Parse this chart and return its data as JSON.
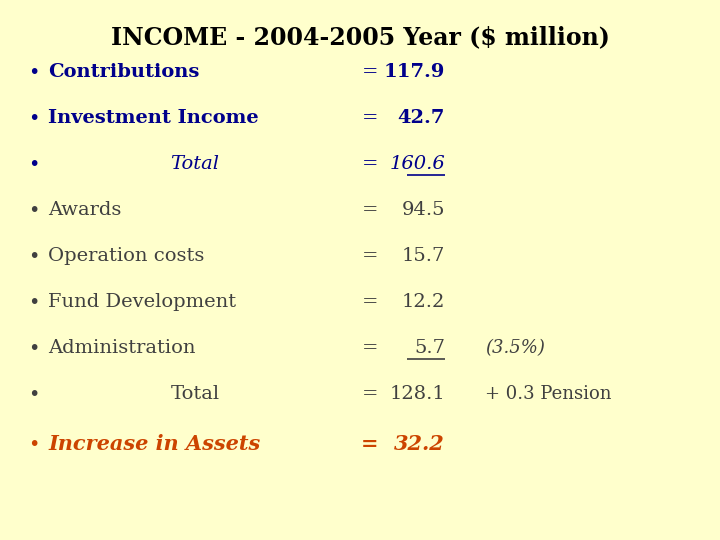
{
  "title": "INCOME - 2004-2005 Year ($ million)",
  "background_color": "#FFFFCC",
  "title_color": "#000000",
  "title_fontsize": 17,
  "title_fontweight": "bold",
  "title_fontfamily": "serif",
  "bullet_color_blue": "#00008B",
  "bullet_color_normal": "#404040",
  "bullet_color_orange": "#CC4400",
  "rows": [
    {
      "label": "Contributions",
      "indent": false,
      "bold": true,
      "italic": false,
      "color": "blue",
      "value": "117.9",
      "extra": "",
      "value_underline": false
    },
    {
      "label": "Investment Income",
      "indent": false,
      "bold": true,
      "italic": false,
      "color": "blue",
      "value": "42.7",
      "extra": "",
      "value_underline": false
    },
    {
      "label": "Total",
      "indent": true,
      "bold": false,
      "italic": true,
      "color": "blue",
      "value": "160.6",
      "extra": "",
      "value_underline": true
    },
    {
      "label": "Awards",
      "indent": false,
      "bold": false,
      "italic": false,
      "color": "normal",
      "value": "94.5",
      "extra": "",
      "value_underline": false
    },
    {
      "label": "Operation costs",
      "indent": false,
      "bold": false,
      "italic": false,
      "color": "normal",
      "value": "15.7",
      "extra": "",
      "value_underline": false
    },
    {
      "label": "Fund Development",
      "indent": false,
      "bold": false,
      "italic": false,
      "color": "normal",
      "value": "12.2",
      "extra": "",
      "value_underline": false
    },
    {
      "label": "Administration",
      "indent": false,
      "bold": false,
      "italic": false,
      "color": "normal",
      "value": "5.7",
      "extra": "(3.5%)",
      "value_underline": true
    },
    {
      "label": "Total",
      "indent": true,
      "bold": false,
      "italic": false,
      "color": "normal",
      "value": "128.1",
      "extra": "+ 0.3 Pension",
      "value_underline": false
    }
  ],
  "last_row": {
    "label": "Increase in Assets",
    "value": "32.2",
    "color": "orange"
  }
}
